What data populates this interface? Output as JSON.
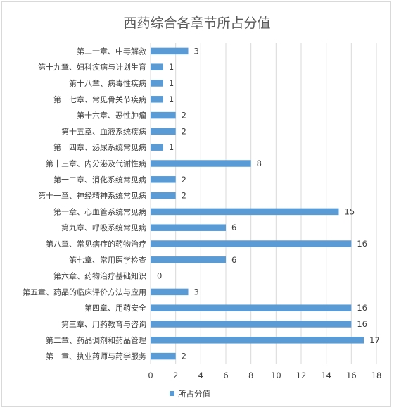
{
  "chart_data": {
    "type": "bar",
    "orientation": "horizontal",
    "title": "西药综合各章节所占分值",
    "categories": [
      "第二十章、中毒解救",
      "第十九章、妇科疾病与计划生育",
      "第十八章、病毒性疾病",
      "第十七章、常见骨关节疾病",
      "第十六章、恶性肿瘤",
      "第十五章、血液系统疾病",
      "第十四章、泌尿系统常见病",
      "第十三章、内分泌及代谢性病",
      "第十二章、消化系统常见病",
      "第十一章、神经精神系统常见病",
      "第十章、心血管系统常见病",
      "第九章、呼吸系统常见病",
      "第八章、常见病症的药物治疗",
      "第七章、常用医学检查",
      "第六章、药物治疗基础知识",
      "第五章、药品的临床评价方法与应用",
      "第四章、用药安全",
      "第三章、用药教育与咨询",
      "第二章、药品调剂和药品管理",
      "第一章、执业药师与药学服务"
    ],
    "series": [
      {
        "name": "所占分值",
        "color": "#5b9bd5",
        "values": [
          3,
          1,
          1,
          1,
          2,
          2,
          1,
          8,
          2,
          2,
          15,
          6,
          16,
          6,
          0,
          3,
          16,
          16,
          17,
          2
        ]
      }
    ],
    "xlim": [
      0,
      18
    ],
    "xticks": [
      0,
      2,
      4,
      6,
      8,
      10,
      12,
      14,
      16,
      18
    ],
    "grid": "vertical",
    "legend": "bottom",
    "data_labels": true
  }
}
